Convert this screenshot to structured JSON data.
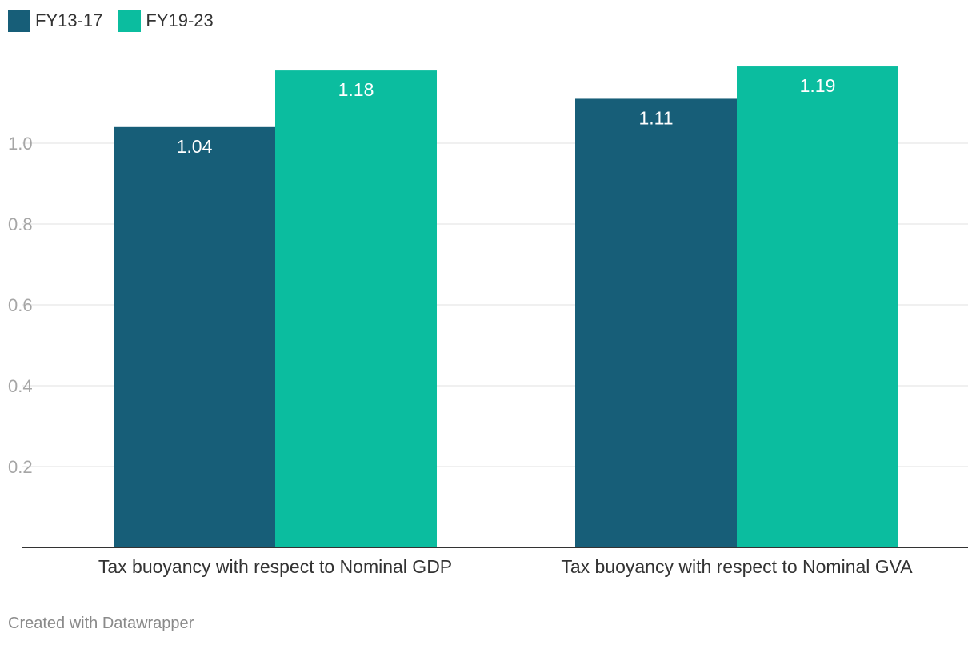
{
  "chart_data": {
    "type": "bar",
    "categories": [
      "Tax buoyancy with respect to Nominal GDP",
      "Tax buoyancy with respect to Nominal GVA"
    ],
    "series": [
      {
        "name": "FY13-17",
        "color": "#175e78",
        "values": [
          1.04,
          1.11
        ],
        "labels": [
          "1.04",
          "1.11"
        ]
      },
      {
        "name": "FY19-23",
        "color": "#0bbd9f",
        "values": [
          1.18,
          1.19
        ],
        "labels": [
          "1.18",
          "1.19"
        ]
      }
    ],
    "yticks": [
      0.2,
      0.4,
      0.6,
      0.8,
      1.0
    ],
    "ytick_labels": [
      "0.2",
      "0.4",
      "0.6",
      "0.8",
      "1.0"
    ],
    "ylim": [
      0,
      1.19
    ],
    "grid": true,
    "legend_position": "top-left"
  },
  "footer": {
    "credit": "Created with Datawrapper"
  }
}
